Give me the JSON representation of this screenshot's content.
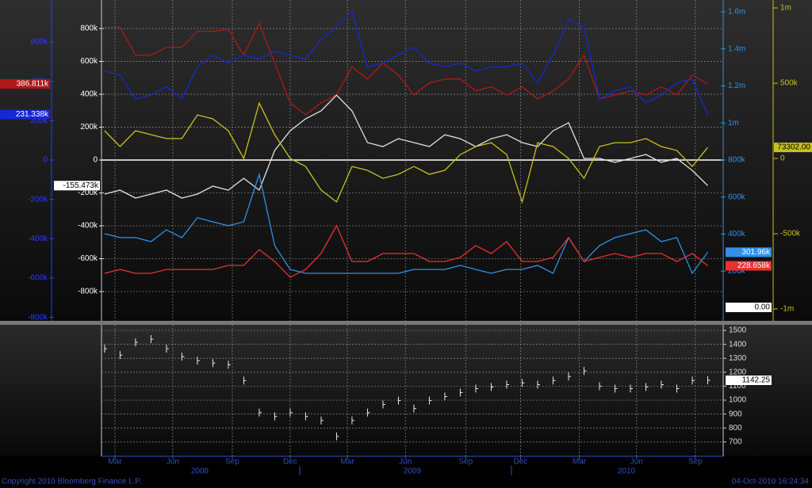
{
  "chart_data": [
    {
      "type": "line",
      "xlim": [
        -0.2,
        40.0
      ],
      "ylim": [
        -978000,
        973500
      ],
      "yticks": [
        {
          "value": 800000,
          "label": "800k"
        },
        {
          "value": 600000,
          "label": "600k"
        },
        {
          "value": 400000,
          "label": "400k"
        },
        {
          "value": 200000,
          "label": "200k"
        },
        0,
        {
          "value": -200000,
          "label": "-200k"
        },
        {
          "value": -400000,
          "label": "-400k"
        },
        {
          "value": -600000,
          "label": "-600k"
        },
        {
          "value": -800000,
          "label": "-800k"
        }
      ],
      "y2lim": [
        -817600,
        813500
      ],
      "y2ticks": [
        {
          "value": 600000,
          "label": "600k"
        },
        {
          "value": 400000,
          "label": "400k"
        },
        {
          "value": 200000,
          "label": "200k"
        },
        0,
        {
          "value": -200000,
          "label": "-200k"
        },
        {
          "value": -400000,
          "label": "-400k"
        },
        {
          "value": -600000,
          "label": "-600k"
        },
        {
          "value": -800000,
          "label": "-800k"
        }
      ],
      "y3lim": [
        -68600,
        1664000
      ],
      "y3ticks": [
        {
          "value": 1600000,
          "label": "1.6m"
        },
        {
          "value": 1400000,
          "label": "1.4m"
        },
        {
          "value": 1200000,
          "label": "1.2m"
        },
        {
          "value": 1000000,
          "label": "1m"
        },
        {
          "value": 800000,
          "label": "800k"
        },
        {
          "value": 600000,
          "label": "600k"
        },
        {
          "value": 400000,
          "label": "400k"
        },
        {
          "value": 200000,
          "label": "200k"
        }
      ],
      "y4lim": [
        -1078900,
        1052600
      ],
      "y4ticks": [
        {
          "value": 1000000,
          "label": "1m"
        },
        {
          "value": 500000,
          "label": "500k"
        },
        0,
        {
          "value": -500000,
          "label": "-500k"
        },
        {
          "value": -1000000,
          "label": "-1m"
        }
      ],
      "grid": true,
      "marker_label": "0.00",
      "series": [
        {
          "color": "#b01818",
          "axis": "y2",
          "last_label": "386.811k",
          "values": [
            675000,
            675000,
            533000,
            533000,
            574000,
            574000,
            654000,
            654000,
            663000,
            533000,
            695000,
            493000,
            291000,
            230000,
            291000,
            331000,
            473000,
            412000,
            493000,
            432000,
            331000,
            392000,
            412000,
            412000,
            351000,
            372000,
            331000,
            372000,
            311000,
            351000,
            412000,
            533000,
            311000,
            331000,
            351000,
            331000,
            372000,
            331000,
            432000,
            386811
          ]
        },
        {
          "color": "#1428d8",
          "axis": "y2",
          "last_label": "231.338k",
          "values": [
            452000,
            432000,
            311000,
            331000,
            372000,
            311000,
            473000,
            533000,
            493000,
            533000,
            513000,
            553000,
            533000,
            513000,
            614000,
            675000,
            756000,
            473000,
            493000,
            533000,
            574000,
            493000,
            473000,
            493000,
            452000,
            473000,
            473000,
            493000,
            392000,
            533000,
            715000,
            675000,
            311000,
            351000,
            372000,
            291000,
            331000,
            392000,
            412000,
            231338
          ]
        },
        {
          "color": "#e0e0e0",
          "axis": "y",
          "last_label": "-155.473k",
          "values": [
            -207000,
            -183000,
            -231000,
            -207000,
            -183000,
            -231000,
            -207000,
            -159000,
            -183000,
            -111000,
            -183000,
            58000,
            178000,
            251000,
            299000,
            395000,
            299000,
            106000,
            82000,
            130000,
            106000,
            82000,
            154000,
            130000,
            82000,
            130000,
            154000,
            106000,
            82000,
            178000,
            227000,
            10000,
            10000,
            -14000,
            10000,
            34000,
            -14000,
            10000,
            -63000,
            -155473
          ]
        },
        {
          "color": "#c8c020",
          "axis": "y4",
          "last_label": "73302.00",
          "values": [
            184000,
            79000,
            184000,
            158000,
            132000,
            132000,
            289000,
            263000,
            184000,
            0,
            368000,
            158000,
            0,
            -53000,
            -210000,
            -289000,
            -53000,
            -79000,
            -132000,
            -105000,
            -53000,
            -105000,
            -79000,
            26000,
            79000,
            105000,
            26000,
            -289000,
            105000,
            79000,
            0,
            -132000,
            79000,
            105000,
            105000,
            132000,
            79000,
            53000,
            -53000,
            73302
          ]
        },
        {
          "color": "#3090e8",
          "axis": "y3",
          "last_label": "301.96k",
          "values": [
            402000,
            381000,
            381000,
            359000,
            423000,
            381000,
            488000,
            466000,
            445000,
            466000,
            723000,
            338000,
            209000,
            188000,
            188000,
            188000,
            188000,
            188000,
            188000,
            188000,
            209000,
            209000,
            209000,
            231000,
            209000,
            188000,
            209000,
            209000,
            231000,
            188000,
            381000,
            252000,
            338000,
            381000,
            402000,
            423000,
            359000,
            381000,
            188000,
            301960
          ]
        },
        {
          "color": "#e83030",
          "axis": "y3",
          "last_label": "228.658k",
          "values": [
            188000,
            209000,
            188000,
            188000,
            209000,
            209000,
            209000,
            209000,
            231000,
            231000,
            316000,
            252000,
            167000,
            209000,
            295000,
            445000,
            252000,
            252000,
            295000,
            295000,
            295000,
            252000,
            252000,
            274000,
            338000,
            295000,
            359000,
            252000,
            252000,
            274000,
            381000,
            252000,
            274000,
            295000,
            274000,
            295000,
            295000,
            252000,
            295000,
            228658
          ]
        }
      ]
    },
    {
      "type": "price",
      "xlim": [
        -0.2,
        40.0
      ],
      "ylim": [
        597,
        1540
      ],
      "yticks": [
        1500,
        1400,
        1300,
        1200,
        1100,
        1000,
        900,
        800,
        700
      ],
      "xticks": [
        {
          "value": 0.67,
          "label": "Mar"
        },
        {
          "value": 4.41,
          "label": "Jun"
        },
        {
          "value": 8.26,
          "label": "Sep"
        },
        {
          "value": 12.0,
          "label": "Dec"
        },
        {
          "value": 15.7,
          "label": "Mar"
        },
        {
          "value": 19.45,
          "label": "Jun"
        },
        {
          "value": 23.35,
          "label": "Sep"
        },
        {
          "value": 26.9,
          "label": "Dec"
        },
        {
          "value": 30.7,
          "label": "Mar"
        },
        {
          "value": 34.4,
          "label": "Jun"
        },
        {
          "value": 38.2,
          "label": "Sep"
        }
      ],
      "year_labels": [
        "2008",
        "2009",
        "2010"
      ],
      "grid": true,
      "series": [
        {
          "color": "#e8e8e8",
          "last_label": "1142.25",
          "values": [
            1369,
            1323,
            1414,
            1437,
            1369,
            1311,
            1283,
            1266,
            1254,
            1140,
            911,
            883,
            911,
            883,
            854,
            740,
            854,
            911,
            969,
            997,
            940,
            997,
            1026,
            1054,
            1083,
            1094,
            1111,
            1123,
            1111,
            1140,
            1169,
            1209,
            1100,
            1083,
            1083,
            1094,
            1111,
            1083,
            1140,
            1142.25
          ]
        }
      ]
    }
  ],
  "footer": {
    "copyright": "Copyright 2010 Bloomberg Finance L.P.",
    "timestamp": "04-Oct-2010 16:24:34"
  }
}
